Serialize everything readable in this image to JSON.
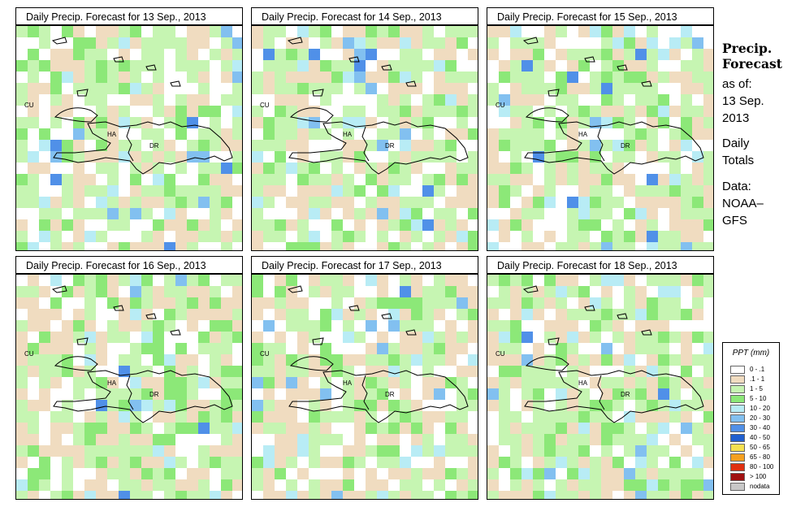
{
  "panels": [
    {
      "title": "Daily Precip. Forecast for  13 Sep., 2013",
      "seed": 13
    },
    {
      "title": "Daily Precip. Forecast for  14 Sep., 2013",
      "seed": 14
    },
    {
      "title": "Daily Precip. Forecast for  15 Sep., 2013",
      "seed": 15
    },
    {
      "title": "Daily Precip. Forecast for  16 Sep., 2013",
      "seed": 16
    },
    {
      "title": "Daily Precip. Forecast for  17 Sep., 2013",
      "seed": 17
    },
    {
      "title": "Daily Precip. Forecast for  18 Sep., 2013",
      "seed": 18
    }
  ],
  "map_labels": {
    "cuba": "CU",
    "haiti": "HA",
    "dominican_republic": "DR"
  },
  "side_info": {
    "heading_line1": "Precip.",
    "heading_line2": "Forecast",
    "as_of": "as of:",
    "date_line1": "13 Sep.",
    "date_line2": "2013",
    "daily_line1": "Daily",
    "daily_line2": "Totals",
    "data_line1": "Data:",
    "data_line2": "NOAA–",
    "data_line3": "GFS"
  },
  "legend": {
    "title": "PPT (mm)",
    "items": [
      {
        "label": "0 - .1",
        "color": "#ffffff"
      },
      {
        "label": ".1 - 1",
        "color": "#f0dcc0"
      },
      {
        "label": "1 - 5",
        "color": "#c6f5b2"
      },
      {
        "label": "5 - 10",
        "color": "#8ce878"
      },
      {
        "label": "10 - 20",
        "color": "#b8ecf5"
      },
      {
        "label": "20 - 30",
        "color": "#82c0f0"
      },
      {
        "label": "30 - 40",
        "color": "#5090e8"
      },
      {
        "label": "40 - 50",
        "color": "#2060d0"
      },
      {
        "label": "50 - 65",
        "color": "#f5e050"
      },
      {
        "label": "65 - 80",
        "color": "#f5a020"
      },
      {
        "label": "80 - 100",
        "color": "#e03010"
      },
      {
        "label": "> 100",
        "color": "#a01010"
      },
      {
        "label": "nodata",
        "color": "#c8c8c8"
      }
    ]
  }
}
